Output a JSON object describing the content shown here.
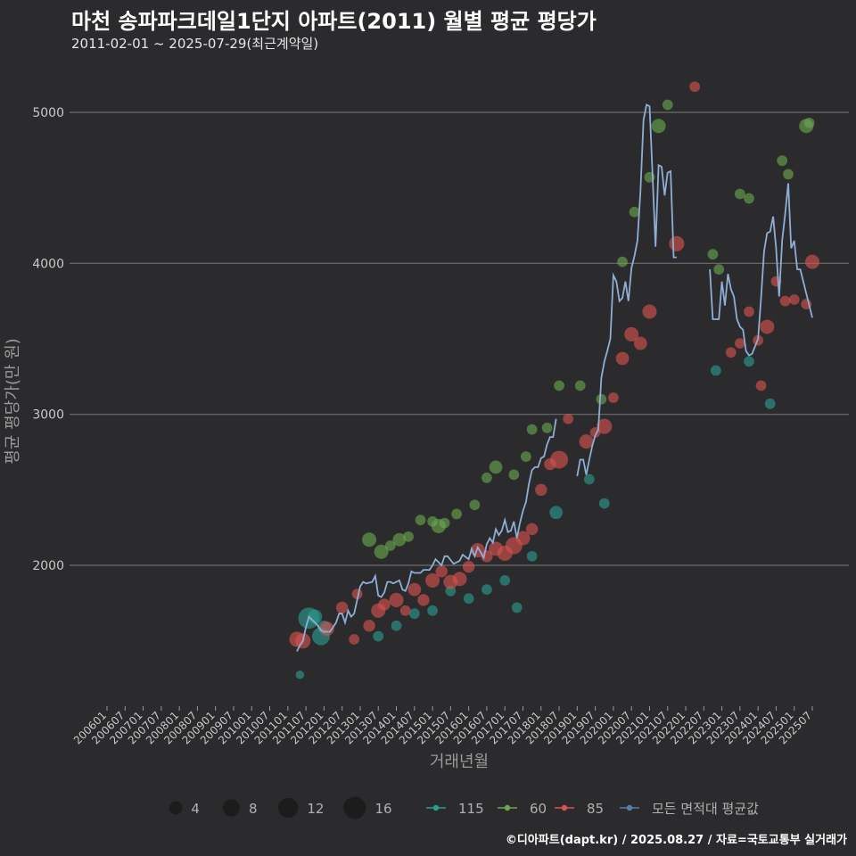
{
  "chart_data": {
    "type": "scatter",
    "title": "마천 송파파크데일1단지 아파트(2011) 월별 평균 평당가",
    "subtitle": "2011-02-01 ~ 2025-07-29(최근계약일)",
    "xlabel": "거래년월",
    "ylabel": "평균 평당가(만 원)",
    "xlim": [
      "2006-01",
      "2025-07"
    ],
    "ylim": [
      1100,
      5250
    ],
    "yticks": [
      2000,
      3000,
      4000,
      5000
    ],
    "xticks": [
      "200601",
      "200607",
      "200701",
      "200707",
      "200801",
      "200807",
      "200901",
      "200907",
      "201001",
      "201007",
      "201101",
      "201107",
      "201201",
      "201207",
      "201301",
      "201307",
      "201401",
      "201407",
      "201501",
      "201507",
      "201601",
      "201607",
      "201701",
      "201707",
      "201801",
      "201807",
      "201901",
      "201907",
      "202001",
      "202007",
      "202101",
      "202107",
      "202201",
      "202207",
      "202301",
      "202307",
      "202401",
      "202407",
      "202501",
      "202507"
    ],
    "grid": true,
    "legend_position": "bottom",
    "size_legend": {
      "values": [
        4,
        8,
        12,
        16
      ]
    },
    "series": [
      {
        "name": "115",
        "color": "#2a9d8f",
        "points": [
          [
            "2011-05",
            1275,
            1
          ],
          [
            "2011-08",
            1650,
            14
          ],
          [
            "2011-10",
            1660,
            5
          ],
          [
            "2011-12",
            1530,
            9
          ],
          [
            "2012-01",
            1590,
            4
          ],
          [
            "2013-07",
            1530,
            2
          ],
          [
            "2014-01",
            1600,
            2
          ],
          [
            "2014-07",
            1680,
            2
          ],
          [
            "2015-01",
            1700,
            2
          ],
          [
            "2015-07",
            1830,
            2
          ],
          [
            "2016-01",
            1780,
            2
          ],
          [
            "2016-07",
            1840,
            2
          ],
          [
            "2017-01",
            1900,
            2
          ],
          [
            "2017-05",
            1720,
            2
          ],
          [
            "2017-10",
            2060,
            2
          ],
          [
            "2018-06",
            2350,
            4
          ],
          [
            "2019-05",
            2570,
            2
          ],
          [
            "2019-10",
            2410,
            2
          ],
          [
            "2022-11",
            3290,
            2
          ],
          [
            "2023-10",
            3350,
            2
          ],
          [
            "2024-05",
            3070,
            2
          ]
        ]
      },
      {
        "name": "60",
        "color": "#6aa84f",
        "points": [
          [
            "2013-04",
            2170,
            5
          ],
          [
            "2013-08",
            2090,
            5
          ],
          [
            "2013-11",
            2130,
            2
          ],
          [
            "2014-02",
            2170,
            4
          ],
          [
            "2014-05",
            2190,
            2
          ],
          [
            "2014-09",
            2300,
            2
          ],
          [
            "2015-01",
            2290,
            2
          ],
          [
            "2015-03",
            2260,
            5
          ],
          [
            "2015-05",
            2280,
            2
          ],
          [
            "2015-09",
            2340,
            2
          ],
          [
            "2016-03",
            2400,
            2
          ],
          [
            "2016-07",
            2580,
            2
          ],
          [
            "2016-10",
            2650,
            4
          ],
          [
            "2017-04",
            2600,
            2
          ],
          [
            "2017-08",
            2720,
            2
          ],
          [
            "2017-10",
            2900,
            2
          ],
          [
            "2018-03",
            2910,
            2
          ],
          [
            "2018-07",
            3190,
            2
          ],
          [
            "2019-02",
            3190,
            2
          ],
          [
            "2019-09",
            3100,
            2
          ],
          [
            "2020-04",
            4010,
            2
          ],
          [
            "2020-08",
            4340,
            2
          ],
          [
            "2021-01",
            4570,
            2
          ],
          [
            "2021-04",
            4910,
            5
          ],
          [
            "2021-07",
            5050,
            2
          ],
          [
            "2022-10",
            4060,
            2
          ],
          [
            "2023-07",
            4460,
            2
          ],
          [
            "2023-10",
            4430,
            2
          ],
          [
            "2024-09",
            4680,
            2
          ],
          [
            "2024-11",
            4590,
            2
          ],
          [
            "2025-05",
            4910,
            5
          ],
          [
            "2025-06",
            4930,
            2
          ],
          [
            "2022-12",
            3960,
            2
          ]
        ]
      },
      {
        "name": "85",
        "color": "#d9534f",
        "points": [
          [
            "2011-04",
            1510,
            6
          ],
          [
            "2011-06",
            1500,
            6
          ],
          [
            "2012-02",
            1580,
            5
          ],
          [
            "2012-07",
            1720,
            3
          ],
          [
            "2012-11",
            1510,
            2
          ],
          [
            "2012-12",
            1810,
            2
          ],
          [
            "2013-04",
            1600,
            3
          ],
          [
            "2013-07",
            1700,
            5
          ],
          [
            "2013-09",
            1740,
            3
          ],
          [
            "2014-01",
            1770,
            5
          ],
          [
            "2014-04",
            1700,
            2
          ],
          [
            "2014-07",
            1840,
            4
          ],
          [
            "2014-10",
            1770,
            3
          ],
          [
            "2015-01",
            1900,
            5
          ],
          [
            "2015-04",
            1960,
            3
          ],
          [
            "2015-07",
            1890,
            5
          ],
          [
            "2015-10",
            1910,
            5
          ],
          [
            "2016-01",
            1990,
            3
          ],
          [
            "2016-04",
            2100,
            5
          ],
          [
            "2016-07",
            2060,
            3
          ],
          [
            "2016-10",
            2110,
            5
          ],
          [
            "2017-01",
            2080,
            6
          ],
          [
            "2017-04",
            2130,
            8
          ],
          [
            "2017-07",
            2180,
            5
          ],
          [
            "2017-10",
            2240,
            3
          ],
          [
            "2018-01",
            2500,
            3
          ],
          [
            "2018-04",
            2670,
            3
          ],
          [
            "2018-07",
            2700,
            9
          ],
          [
            "2018-10",
            2970,
            2
          ],
          [
            "2019-04",
            2820,
            5
          ],
          [
            "2019-07",
            2880,
            2
          ],
          [
            "2019-10",
            2920,
            6
          ],
          [
            "2020-01",
            3110,
            2
          ],
          [
            "2020-04",
            3370,
            4
          ],
          [
            "2020-07",
            3530,
            5
          ],
          [
            "2020-10",
            3470,
            4
          ],
          [
            "2021-01",
            3680,
            5
          ],
          [
            "2021-10",
            4130,
            6
          ],
          [
            "2022-04",
            5170,
            2
          ],
          [
            "2023-04",
            3410,
            2
          ],
          [
            "2023-07",
            3470,
            2
          ],
          [
            "2023-10",
            3680,
            2
          ],
          [
            "2024-01",
            3490,
            2
          ],
          [
            "2024-04",
            3580,
            5
          ],
          [
            "2024-07",
            3880,
            2
          ],
          [
            "2024-10",
            3750,
            2
          ],
          [
            "2025-01",
            3760,
            2
          ],
          [
            "2025-07",
            4010,
            5
          ],
          [
            "2025-05",
            3730,
            2
          ],
          [
            "2024-02",
            3190,
            2
          ]
        ]
      }
    ],
    "average_series": {
      "name": "모든 면적대 평균값",
      "color": "#8eaed6",
      "segments": [
        [
          [
            "2011-04",
            1430
          ],
          [
            "2011-05",
            1470
          ],
          [
            "2011-06",
            1500
          ],
          [
            "2011-07",
            1590
          ],
          [
            "2011-08",
            1660
          ],
          [
            "2011-09",
            1640
          ],
          [
            "2011-10",
            1620
          ],
          [
            "2011-11",
            1600
          ],
          [
            "2011-12",
            1570
          ],
          [
            "2012-01",
            1560
          ],
          [
            "2012-03",
            1560
          ],
          [
            "2012-05",
            1620
          ],
          [
            "2012-06",
            1680
          ],
          [
            "2012-07",
            1680
          ],
          [
            "2012-08",
            1620
          ],
          [
            "2012-09",
            1700
          ],
          [
            "2012-10",
            1660
          ],
          [
            "2012-11",
            1680
          ],
          [
            "2013-01",
            1860
          ],
          [
            "2013-02",
            1890
          ],
          [
            "2013-03",
            1880
          ],
          [
            "2013-05",
            1890
          ],
          [
            "2013-06",
            1930
          ],
          [
            "2013-07",
            1800
          ],
          [
            "2013-08",
            1790
          ],
          [
            "2013-09",
            1820
          ],
          [
            "2013-10",
            1890
          ],
          [
            "2013-11",
            1890
          ],
          [
            "2013-12",
            1880
          ],
          [
            "2014-02",
            1900
          ],
          [
            "2014-03",
            1840
          ],
          [
            "2014-04",
            1830
          ],
          [
            "2014-05",
            1880
          ],
          [
            "2014-06",
            1960
          ],
          [
            "2014-07",
            1950
          ],
          [
            "2014-09",
            1950
          ],
          [
            "2014-10",
            1970
          ],
          [
            "2014-12",
            1970
          ],
          [
            "2015-01",
            2000
          ],
          [
            "2015-02",
            2040
          ],
          [
            "2015-04",
            2000
          ],
          [
            "2015-05",
            2060
          ],
          [
            "2015-06",
            2060
          ],
          [
            "2015-08",
            2010
          ],
          [
            "2015-10",
            2030
          ],
          [
            "2015-11",
            2070
          ],
          [
            "2016-01",
            2040
          ],
          [
            "2016-02",
            2110
          ],
          [
            "2016-03",
            2060
          ],
          [
            "2016-04",
            2120
          ],
          [
            "2016-06",
            2050
          ],
          [
            "2016-07",
            2140
          ],
          [
            "2016-08",
            2180
          ],
          [
            "2016-09",
            2150
          ],
          [
            "2016-10",
            2240
          ],
          [
            "2016-11",
            2200
          ],
          [
            "2016-12",
            2230
          ],
          [
            "2017-01",
            2300
          ],
          [
            "2017-02",
            2220
          ],
          [
            "2017-03",
            2230
          ],
          [
            "2017-04",
            2290
          ],
          [
            "2017-05",
            2180
          ],
          [
            "2017-06",
            2280
          ],
          [
            "2017-07",
            2360
          ],
          [
            "2017-08",
            2420
          ],
          [
            "2017-09",
            2540
          ],
          [
            "2017-10",
            2630
          ],
          [
            "2017-11",
            2650
          ],
          [
            "2017-12",
            2650
          ],
          [
            "2018-01",
            2710
          ],
          [
            "2018-02",
            2720
          ],
          [
            "2018-03",
            2800
          ],
          [
            "2018-04",
            2850
          ],
          [
            "2018-05",
            2850
          ],
          [
            "2018-06",
            2970
          ]
        ],
        [
          [
            "2019-01",
            2590
          ],
          [
            "2019-02",
            2700
          ],
          [
            "2019-03",
            2700
          ],
          [
            "2019-04",
            2600
          ],
          [
            "2019-05",
            2700
          ],
          [
            "2019-06",
            2790
          ],
          [
            "2019-07",
            2860
          ],
          [
            "2019-08",
            2900
          ],
          [
            "2019-09",
            3240
          ],
          [
            "2019-10",
            3350
          ],
          [
            "2019-11",
            3420
          ],
          [
            "2019-12",
            3500
          ],
          [
            "2020-01",
            3920
          ],
          [
            "2020-02",
            3880
          ],
          [
            "2020-03",
            3750
          ],
          [
            "2020-04",
            3770
          ],
          [
            "2020-05",
            3880
          ],
          [
            "2020-06",
            3750
          ],
          [
            "2020-07",
            3970
          ],
          [
            "2020-08",
            4050
          ],
          [
            "2020-09",
            4150
          ],
          [
            "2020-10",
            4480
          ],
          [
            "2020-11",
            4950
          ],
          [
            "2020-12",
            5050
          ],
          [
            "2021-01",
            5040
          ],
          [
            "2021-02",
            4590
          ],
          [
            "2021-03",
            4110
          ],
          [
            "2021-04",
            4650
          ],
          [
            "2021-05",
            4640
          ],
          [
            "2021-06",
            4450
          ],
          [
            "2021-07",
            4600
          ],
          [
            "2021-08",
            4610
          ],
          [
            "2021-09",
            4040
          ],
          [
            "2021-10",
            4040
          ]
        ],
        [
          [
            "2022-09",
            3960
          ],
          [
            "2022-10",
            3630
          ],
          [
            "2022-11",
            3630
          ],
          [
            "2022-12",
            3630
          ],
          [
            "2023-01",
            3880
          ],
          [
            "2023-02",
            3720
          ],
          [
            "2023-03",
            3930
          ],
          [
            "2023-04",
            3830
          ],
          [
            "2023-05",
            3780
          ],
          [
            "2023-06",
            3630
          ],
          [
            "2023-07",
            3580
          ],
          [
            "2023-08",
            3560
          ],
          [
            "2023-09",
            3420
          ],
          [
            "2023-10",
            3390
          ],
          [
            "2023-11",
            3400
          ],
          [
            "2023-12",
            3450
          ],
          [
            "2024-01",
            3500
          ],
          [
            "2024-02",
            3770
          ],
          [
            "2024-03",
            4080
          ],
          [
            "2024-04",
            4200
          ],
          [
            "2024-05",
            4210
          ],
          [
            "2024-06",
            4310
          ],
          [
            "2024-07",
            4100
          ],
          [
            "2024-08",
            3780
          ],
          [
            "2024-09",
            4150
          ],
          [
            "2024-10",
            4330
          ],
          [
            "2024-11",
            4530
          ],
          [
            "2024-12",
            4100
          ],
          [
            "2025-01",
            4150
          ],
          [
            "2025-02",
            3960
          ],
          [
            "2025-03",
            3960
          ],
          [
            "2025-07",
            3640
          ]
        ]
      ]
    }
  },
  "footer": {
    "credit": "©디아파트(dapt.kr) / 2025.08.27 / 자료=국토교통부 실거래가"
  }
}
